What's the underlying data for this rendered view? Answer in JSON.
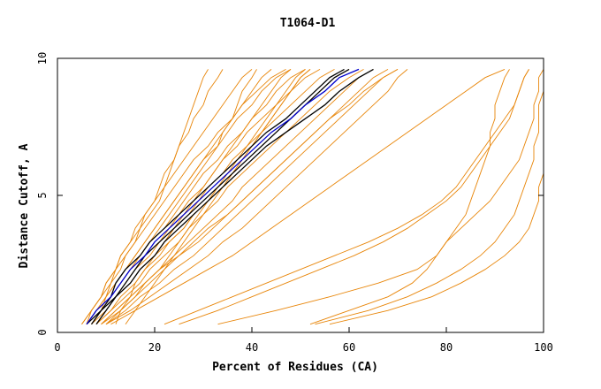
{
  "chart_data": {
    "type": "line",
    "title": "T1064-D1",
    "xlabel": "Percent of Residues (CA)",
    "ylabel": "Distance Cutoff, A",
    "xlim": [
      0,
      100
    ],
    "ylim": [
      0,
      10
    ],
    "x_ticks": [
      "0",
      "20",
      "40",
      "60",
      "80",
      "100"
    ],
    "y_ticks": [
      "0",
      "5",
      "10"
    ],
    "grid": false,
    "legend": "none",
    "colors": {
      "bulk": "#e8860a",
      "highlight_black": "#000000",
      "highlight_blue": "#0000cc"
    },
    "y_levels": [
      0.3,
      0.8,
      1.3,
      1.8,
      2.3,
      2.8,
      3.3,
      3.8,
      4.3,
      4.8,
      5.3,
      5.8,
      6.3,
      6.8,
      7.3,
      7.8,
      8.3,
      8.8,
      9.3,
      9.6
    ],
    "bulk_series": [
      [
        5,
        7,
        9,
        11,
        12,
        14,
        16,
        18,
        20,
        22,
        24,
        26,
        28,
        31,
        33,
        36,
        38,
        41,
        44,
        47
      ],
      [
        5,
        7,
        9,
        10,
        12,
        13,
        15,
        16,
        18,
        20,
        22,
        24,
        26,
        28,
        30,
        32,
        34,
        36,
        38,
        40
      ],
      [
        6,
        8,
        10,
        12,
        14,
        16,
        18,
        20,
        22,
        24,
        26,
        28,
        30,
        33,
        35,
        37,
        40,
        42,
        45,
        48
      ],
      [
        6,
        8,
        11,
        13,
        15,
        17,
        19,
        22,
        24,
        26,
        28,
        30,
        33,
        35,
        38,
        40,
        43,
        45,
        48,
        51
      ],
      [
        7,
        9,
        12,
        14,
        16,
        19,
        21,
        23,
        25,
        27,
        30,
        32,
        34,
        37,
        39,
        42,
        45,
        48,
        51,
        54
      ],
      [
        7,
        10,
        12,
        15,
        17,
        20,
        22,
        24,
        27,
        29,
        31,
        34,
        36,
        39,
        42,
        45,
        48,
        51,
        54,
        57
      ],
      [
        8,
        11,
        13,
        16,
        18,
        21,
        23,
        26,
        28,
        31,
        33,
        36,
        39,
        42,
        45,
        48,
        51,
        54,
        57,
        60
      ],
      [
        8,
        11,
        14,
        17,
        19,
        22,
        25,
        27,
        30,
        33,
        35,
        38,
        41,
        44,
        47,
        50,
        53,
        56,
        60,
        63
      ],
      [
        9,
        12,
        15,
        18,
        21,
        24,
        27,
        30,
        33,
        36,
        38,
        41,
        44,
        47,
        50,
        53,
        56,
        59,
        62,
        65
      ],
      [
        9,
        13,
        16,
        19,
        22,
        25,
        29,
        32,
        35,
        38,
        41,
        44,
        47,
        50,
        53,
        56,
        59,
        62,
        65,
        68
      ],
      [
        10,
        14,
        17,
        21,
        24,
        28,
        31,
        34,
        37,
        40,
        43,
        46,
        49,
        52,
        55,
        58,
        61,
        64,
        67,
        70
      ],
      [
        10,
        15,
        19,
        23,
        27,
        31,
        34,
        38,
        41,
        44,
        47,
        50,
        53,
        56,
        59,
        62,
        65,
        68,
        70,
        72
      ],
      [
        6,
        8,
        10,
        11,
        13,
        14,
        16,
        17,
        19,
        21,
        22,
        23,
        24,
        25,
        26,
        27,
        28,
        29,
        30,
        31
      ],
      [
        6,
        7,
        9,
        10,
        12,
        13,
        15,
        17,
        18,
        20,
        21,
        22,
        24,
        25,
        27,
        28,
        30,
        31,
        33,
        34
      ],
      [
        7,
        9,
        11,
        13,
        15,
        17,
        19,
        21,
        23,
        25,
        27,
        29,
        31,
        33,
        34,
        36,
        37,
        38,
        40,
        41
      ],
      [
        8,
        10,
        12,
        15,
        17,
        20,
        23,
        26,
        28,
        31,
        34,
        36,
        38,
        40,
        42,
        44,
        46,
        48,
        50,
        52
      ],
      [
        9,
        12,
        15,
        18,
        21,
        25,
        28,
        31,
        35,
        38,
        41,
        44,
        47,
        50,
        53,
        56,
        60,
        63,
        67,
        70
      ],
      [
        11,
        16,
        21,
        26,
        31,
        36,
        40,
        44,
        48,
        52,
        56,
        60,
        64,
        68,
        72,
        76,
        80,
        84,
        88,
        92
      ],
      [
        22,
        29,
        36,
        43,
        50,
        57,
        64,
        70,
        75,
        79,
        82,
        84,
        86,
        88,
        90,
        92,
        94,
        95,
        96,
        97
      ],
      [
        25,
        33,
        40,
        47,
        54,
        61,
        67,
        72,
        76,
        80,
        83,
        85,
        87,
        89,
        91,
        93,
        94,
        95,
        96,
        97
      ],
      [
        33,
        45,
        56,
        66,
        74,
        78,
        80,
        82,
        84,
        85,
        86,
        87,
        88,
        89,
        89,
        90,
        90,
        91,
        92,
        93
      ],
      [
        52,
        60,
        68,
        73,
        76,
        78,
        80,
        83,
        86,
        89,
        91,
        93,
        95,
        96,
        97,
        98,
        98,
        99,
        99,
        100
      ],
      [
        53,
        64,
        72,
        78,
        83,
        87,
        90,
        92,
        94,
        95,
        96,
        97,
        98,
        98,
        99,
        99,
        99,
        100,
        100,
        100
      ],
      [
        56,
        68,
        77,
        83,
        88,
        92,
        95,
        97,
        98,
        99,
        99,
        100,
        100,
        100,
        100,
        100,
        100,
        100,
        100,
        100
      ],
      [
        12,
        13,
        15,
        16,
        18,
        20,
        22,
        24,
        26,
        28,
        30,
        32,
        34,
        36,
        38,
        40,
        42,
        44,
        46,
        48
      ],
      [
        14,
        16,
        18,
        20,
        22,
        24,
        26,
        28,
        30,
        32,
        34,
        36,
        38,
        40,
        42,
        44,
        46,
        48,
        50,
        52
      ],
      [
        7,
        9,
        10,
        12,
        14,
        16,
        18,
        20,
        22,
        24,
        26,
        28,
        30,
        32,
        34,
        36,
        38,
        40,
        42,
        44
      ],
      [
        10,
        13,
        16,
        18,
        21,
        23,
        25,
        27,
        29,
        31,
        33,
        35,
        37,
        39,
        41,
        43,
        45,
        47,
        49,
        51
      ]
    ],
    "highlight_series": [
      {
        "color": "black",
        "x": [
          7,
          9,
          12,
          14,
          16,
          18,
          21,
          24,
          27,
          30,
          33,
          36,
          39,
          42,
          45,
          48,
          51,
          54,
          57,
          60
        ]
      },
      {
        "color": "black",
        "x": [
          6,
          9,
          11,
          12,
          14,
          17,
          19,
          22,
          25,
          28,
          31,
          34,
          37,
          40,
          43,
          47,
          50,
          53,
          56,
          59
        ]
      },
      {
        "color": "black",
        "x": [
          8,
          10,
          12,
          15,
          17,
          20,
          22,
          25,
          28,
          31,
          34,
          37,
          40,
          43,
          47,
          51,
          55,
          58,
          62,
          65
        ]
      },
      {
        "color": "blue",
        "x": [
          6,
          8,
          11,
          13,
          15,
          18,
          20,
          23,
          26,
          29,
          32,
          35,
          38,
          41,
          44,
          48,
          51,
          55,
          58,
          62
        ]
      }
    ]
  }
}
